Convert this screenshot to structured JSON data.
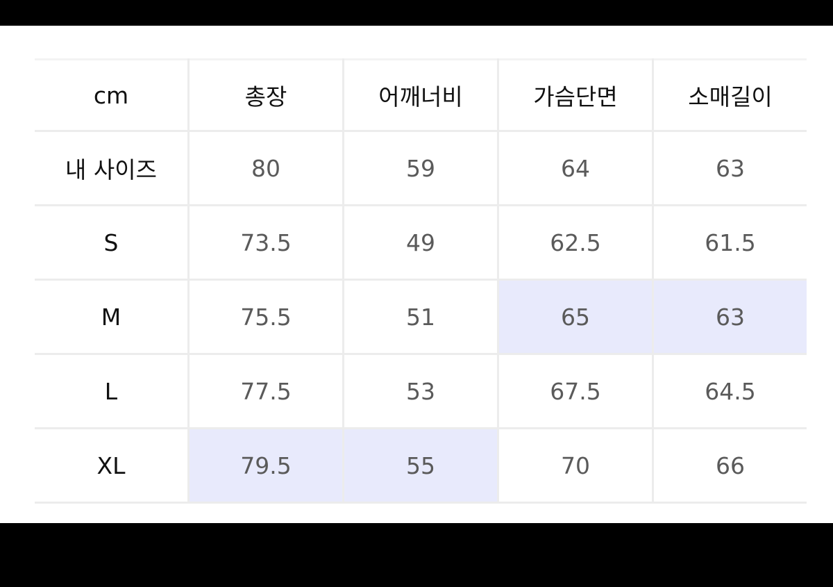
{
  "size_table": {
    "headers": [
      "cm",
      "총장",
      "어깨너비",
      "가슴단면",
      "소매길이"
    ],
    "rows": [
      {
        "label": "내 사이즈",
        "values": [
          "80",
          "59",
          "64",
          "63"
        ]
      },
      {
        "label": "S",
        "values": [
          "73.5",
          "49",
          "62.5",
          "61.5"
        ]
      },
      {
        "label": "M",
        "values": [
          "75.5",
          "51",
          "65",
          "63"
        ]
      },
      {
        "label": "L",
        "values": [
          "77.5",
          "53",
          "67.5",
          "64.5"
        ]
      },
      {
        "label": "XL",
        "values": [
          "79.5",
          "55",
          "70",
          "66"
        ]
      }
    ],
    "highlight_color": "#e8eafc"
  }
}
